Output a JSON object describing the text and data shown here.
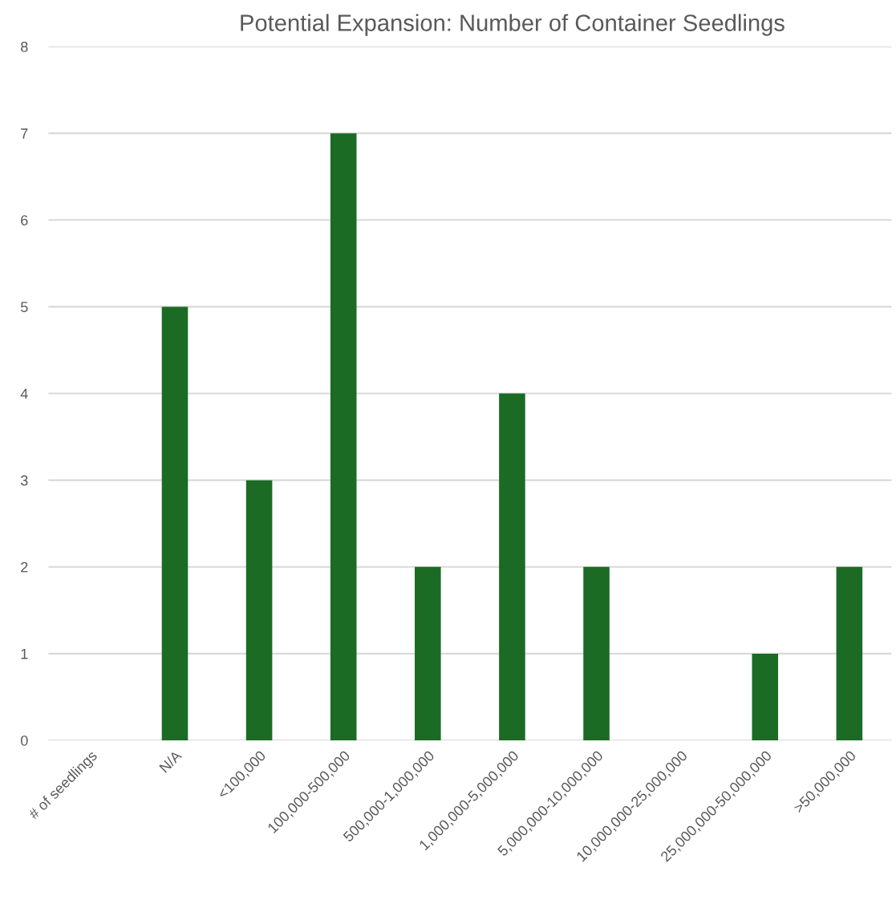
{
  "chart_data": {
    "type": "bar",
    "title": "Potential Expansion: Number of Container Seedlings",
    "categories": [
      "# of seedlings",
      "N/A",
      "<100,000",
      "100,000-500,000",
      "500,000-1,000,000",
      "1,000,000-5,000,000",
      "5,000,000-10,000,000",
      "10,000,000-25,000,000",
      "25,000,000-50,000,000",
      ">50,000,000"
    ],
    "values": [
      null,
      5,
      3,
      7,
      2,
      4,
      2,
      0,
      1,
      2
    ],
    "color": "#1b6b25",
    "ylim": [
      0,
      8
    ],
    "yticks": [
      0,
      1,
      2,
      3,
      4,
      5,
      6,
      7,
      8
    ],
    "grid": "y"
  }
}
